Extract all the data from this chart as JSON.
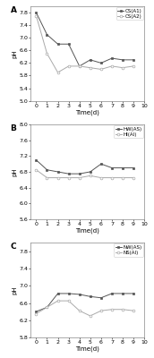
{
  "panel_A": {
    "label": "A",
    "series": [
      {
        "name": "CS(A1)",
        "x": [
          0,
          1,
          2,
          3,
          4,
          5,
          6,
          7,
          8,
          9
        ],
        "y": [
          7.8,
          7.1,
          6.8,
          6.8,
          6.1,
          6.3,
          6.2,
          6.35,
          6.3,
          6.3
        ],
        "marker": "s",
        "linestyle": "-",
        "color": "#555555",
        "filled": true
      },
      {
        "name": "CS(A2)",
        "x": [
          0,
          1,
          2,
          3,
          4,
          5,
          6,
          7,
          8,
          9
        ],
        "y": [
          7.7,
          6.5,
          5.9,
          6.1,
          6.1,
          6.05,
          6.0,
          6.1,
          6.05,
          6.1
        ],
        "marker": "o",
        "linestyle": "-",
        "color": "#aaaaaa",
        "filled": false
      }
    ],
    "ylim": [
      5.0,
      8.0
    ],
    "yticks": [
      5.0,
      5.4,
      5.8,
      6.2,
      6.6,
      7.0,
      7.4,
      7.8
    ],
    "ytick_labels": [
      "5.0",
      "5.4",
      "5.8",
      "6.2",
      "6.6",
      "7.0",
      "7.4",
      "7.8"
    ],
    "ylabel": "pH",
    "xlabel": "Time(d)",
    "xticks": [
      0,
      1,
      2,
      3,
      4,
      5,
      6,
      7,
      8,
      9,
      10
    ]
  },
  "panel_B": {
    "label": "B",
    "series": [
      {
        "name": "HW(AS)",
        "x": [
          0,
          1,
          2,
          3,
          4,
          5,
          6,
          7,
          8,
          9
        ],
        "y": [
          7.1,
          6.85,
          6.8,
          6.75,
          6.75,
          6.8,
          7.0,
          6.9,
          6.9,
          6.9
        ],
        "marker": "s",
        "linestyle": "-",
        "color": "#555555",
        "filled": true
      },
      {
        "name": "HI(AI)",
        "x": [
          0,
          1,
          2,
          3,
          4,
          5,
          6,
          7,
          8,
          9
        ],
        "y": [
          6.85,
          6.65,
          6.65,
          6.65,
          6.65,
          6.7,
          6.65,
          6.65,
          6.65,
          6.65
        ],
        "marker": "o",
        "linestyle": "-",
        "color": "#aaaaaa",
        "filled": false
      }
    ],
    "ylim": [
      5.6,
      8.0
    ],
    "yticks": [
      5.6,
      6.0,
      6.4,
      6.8,
      7.2,
      7.6,
      8.0
    ],
    "ytick_labels": [
      "5.6",
      "6.0",
      "6.4",
      "6.8",
      "7.2",
      "7.6",
      "8.0"
    ],
    "ylabel": "pH",
    "xlabel": "Time(d)",
    "xticks": [
      0,
      1,
      2,
      3,
      4,
      5,
      6,
      7,
      8,
      9,
      10
    ]
  },
  "panel_C": {
    "label": "C",
    "series": [
      {
        "name": "NW(AS)",
        "x": [
          0,
          1,
          2,
          3,
          4,
          5,
          6,
          7,
          8,
          9
        ],
        "y": [
          6.4,
          6.5,
          6.82,
          6.82,
          6.8,
          6.75,
          6.72,
          6.82,
          6.82,
          6.82
        ],
        "marker": "s",
        "linestyle": "-",
        "color": "#555555",
        "filled": true
      },
      {
        "name": "NS(AI)",
        "x": [
          0,
          1,
          2,
          3,
          4,
          5,
          6,
          7,
          8,
          9
        ],
        "y": [
          6.35,
          6.5,
          6.65,
          6.65,
          6.42,
          6.3,
          6.42,
          6.45,
          6.45,
          6.42
        ],
        "marker": "o",
        "linestyle": "-",
        "color": "#aaaaaa",
        "filled": false
      }
    ],
    "ylim": [
      5.8,
      8.0
    ],
    "yticks": [
      5.8,
      6.2,
      6.6,
      7.0,
      7.4,
      7.8
    ],
    "ytick_labels": [
      "5.8",
      "6.2",
      "6.6",
      "7.0",
      "7.4",
      "7.8"
    ],
    "ylabel": "pH",
    "xlabel": "Time(d)",
    "xticks": [
      0,
      1,
      2,
      3,
      4,
      5,
      6,
      7,
      8,
      9,
      10
    ]
  },
  "background_color": "#ffffff",
  "fontsize_label": 5,
  "fontsize_tick": 4.5,
  "fontsize_legend": 4,
  "fontsize_panel_label": 6.5
}
